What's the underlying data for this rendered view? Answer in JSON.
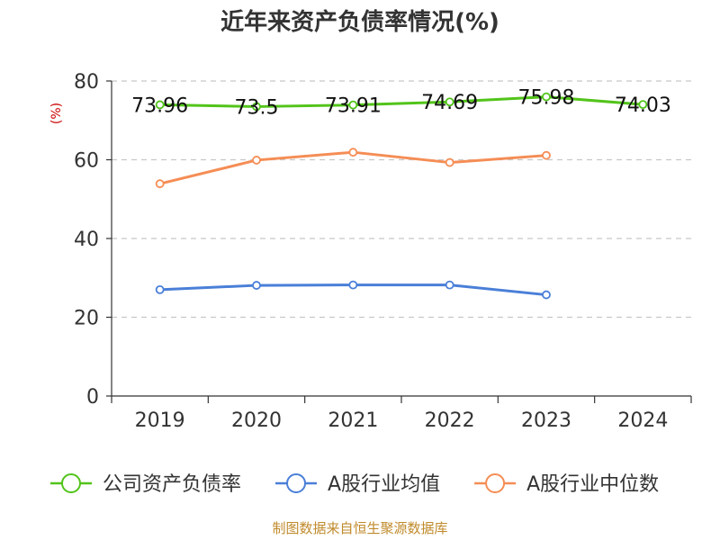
{
  "chart_data": {
    "type": "line",
    "title": "近年来资产负债率情况(%)",
    "ylabel": "(%)",
    "xlabel": "",
    "categories": [
      "2019",
      "2020",
      "2021",
      "2022",
      "2023",
      "2024"
    ],
    "ylim": [
      0,
      80
    ],
    "yticks": [
      0,
      20,
      40,
      60,
      80
    ],
    "grid": true,
    "legend_position": "bottom",
    "series": [
      {
        "name": "公司资产负债率",
        "color": "#52c41a",
        "values": [
          73.96,
          73.5,
          73.91,
          74.69,
          75.98,
          74.03
        ],
        "labels": [
          "73.96",
          "73.5",
          "73.91",
          "74.69",
          "75.98",
          "74.03"
        ]
      },
      {
        "name": "A股行业均值",
        "color": "#4a7fd8",
        "values": [
          27.0,
          28.1,
          28.2,
          28.2,
          25.7,
          null
        ]
      },
      {
        "name": "A股行业中位数",
        "color": "#f58d55",
        "values": [
          53.9,
          59.9,
          61.9,
          59.3,
          61.1,
          null
        ]
      }
    ]
  },
  "footer": "制图数据来自恒生聚源数据库"
}
